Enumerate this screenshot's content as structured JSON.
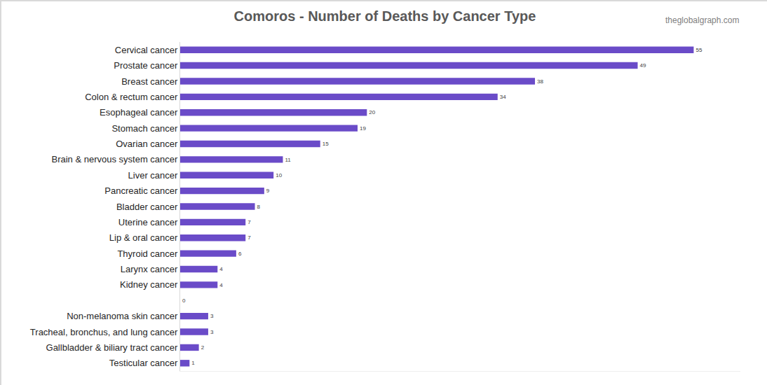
{
  "chart_data": {
    "type": "bar",
    "title": "Comoros - Number of Deaths by Cancer Type",
    "orientation": "horizontal",
    "categories": [
      "Cervical cancer",
      "Prostate cancer",
      "Breast cancer",
      "Colon & rectum cancer",
      "Esophageal cancer",
      "Stomach cancer",
      "Ovarian cancer",
      "Brain & nervous system cancer",
      "Liver cancer",
      "Pancreatic cancer",
      "Bladder cancer",
      "Uterine cancer",
      "Lip & oral cancer",
      "Thyroid cancer",
      "Larynx cancer",
      "Kidney cancer",
      null,
      "Non-melanoma skin cancer",
      "Tracheal, bronchus, and lung cancer",
      "Gallbladder & biliary tract cancer",
      "Testicular cancer"
    ],
    "values": [
      55,
      49,
      38,
      34,
      20,
      19,
      15,
      11,
      10,
      9,
      8,
      7,
      7,
      6,
      4,
      4,
      0,
      3,
      3,
      2,
      1
    ],
    "color": "#6a4bc8",
    "xlim": [
      0,
      60
    ],
    "xticks": [],
    "grid": false,
    "data_labels": true,
    "tick_labels": "y",
    "annotations": [
      "theglobalgraph.com"
    ]
  }
}
